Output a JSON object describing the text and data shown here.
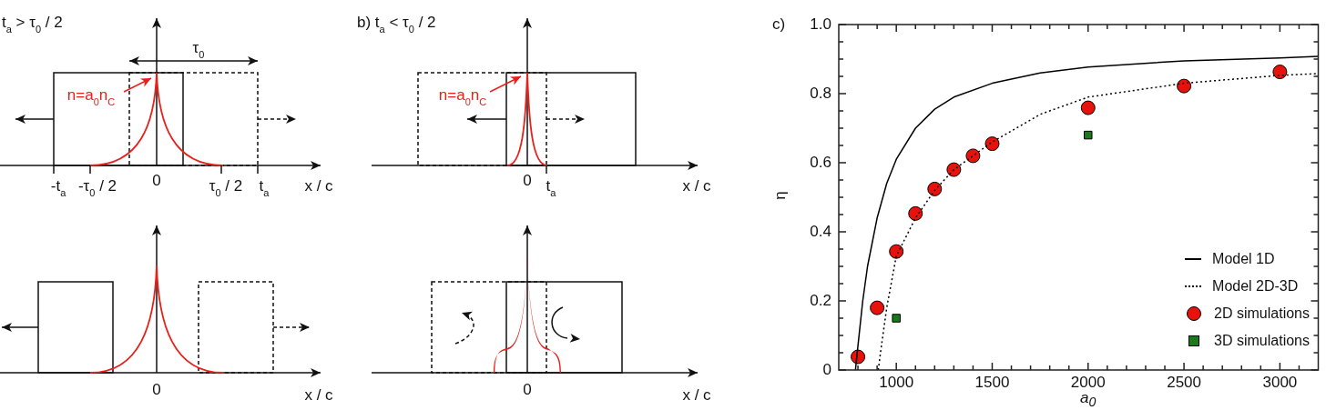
{
  "chart_data": [
    {
      "type": "other",
      "title": "t$_{a}$ > τ$_{0}$ / 2",
      "annotations": [
        "τ$_{0}$",
        "n=a$_{0}$n$_{C}$",
        "-t$_{a}$",
        "-τ$_{0}$ / 2",
        "0",
        "τ$_{0}$ / 2",
        "t$_{a}$",
        "x / c",
        "0",
        "x / c"
      ]
    },
    {
      "type": "other",
      "title": "b) t$_{a}$ < τ$_{0}$ / 2",
      "annotations": [
        "n=a$_{0}$n$_{C}$",
        "0",
        "t$_{a}$",
        "x / c",
        "0",
        "x / c"
      ]
    },
    {
      "type": "scatter",
      "title": "c)",
      "xlabel": "a$_{0}$",
      "ylabel": "η",
      "xlim": [
        700,
        3200
      ],
      "ylim": [
        0,
        1
      ],
      "xticks": [
        {
          "value": 800,
          "label": null
        },
        {
          "value": 900,
          "label": null
        },
        1000,
        {
          "value": 1100,
          "label": null
        },
        {
          "value": 1200,
          "label": null
        },
        {
          "value": 1300,
          "label": null
        },
        {
          "value": 1400,
          "label": null
        },
        1500,
        {
          "value": 1600,
          "label": null
        },
        {
          "value": 1700,
          "label": null
        },
        {
          "value": 1800,
          "label": null
        },
        {
          "value": 1900,
          "label": null
        },
        2000,
        {
          "value": 2100,
          "label": null
        },
        {
          "value": 2200,
          "label": null
        },
        {
          "value": 2300,
          "label": null
        },
        {
          "value": 2400,
          "label": null
        },
        2500,
        {
          "value": 2600,
          "label": null
        },
        {
          "value": 2700,
          "label": null
        },
        {
          "value": 2800,
          "label": null
        },
        {
          "value": 2900,
          "label": null
        },
        3000,
        {
          "value": 3100,
          "label": null
        }
      ],
      "yticks": [
        0,
        {
          "value": 0.05,
          "label": null
        },
        {
          "value": 0.1,
          "label": null
        },
        {
          "value": 0.15,
          "label": null
        },
        0.2,
        {
          "value": 0.25,
          "label": null
        },
        {
          "value": 0.3,
          "label": null
        },
        {
          "value": 0.35,
          "label": null
        },
        0.4,
        {
          "value": 0.45,
          "label": null
        },
        {
          "value": 0.5,
          "label": null
        },
        {
          "value": 0.55,
          "label": null
        },
        0.6,
        {
          "value": 0.65,
          "label": null
        },
        {
          "value": 0.7,
          "label": null
        },
        {
          "value": 0.75,
          "label": null
        },
        0.8,
        {
          "value": 0.85,
          "label": null
        },
        {
          "value": 0.9,
          "label": null
        },
        {
          "value": 0.95,
          "label": null
        },
        {
          "value": 1,
          "label": "1.0"
        }
      ],
      "grid": false,
      "legend": "bottom right",
      "series": [
        {
          "name": "Model 1D",
          "type": "line",
          "color": "#000000",
          "line_style": "solid",
          "marker": "none",
          "x": [
            787,
            800,
            825,
            850,
            900,
            950,
            1000,
            1100,
            1200,
            1300,
            1500,
            1750,
            2000,
            2500,
            3000,
            3200
          ],
          "values": [
            0,
            0.07,
            0.2,
            0.3,
            0.44,
            0.54,
            0.61,
            0.7,
            0.755,
            0.79,
            0.83,
            0.86,
            0.877,
            0.895,
            0.903,
            0.908
          ]
        },
        {
          "name": "Model 2D-3D",
          "type": "line",
          "color": "#000000",
          "line_style": "dotted",
          "marker": "none",
          "x": [
            906,
            920,
            950,
            1000,
            1100,
            1200,
            1300,
            1500,
            1750,
            2000,
            2500,
            3000,
            3200
          ],
          "values": [
            0,
            0.06,
            0.18,
            0.33,
            0.44,
            0.52,
            0.58,
            0.66,
            0.74,
            0.79,
            0.83,
            0.853,
            0.858
          ]
        },
        {
          "name": "2D simulations",
          "type": "scatter",
          "color": "#e8120c",
          "marker": "circle",
          "x": [
            800,
            900,
            1000,
            1100,
            1200,
            1300,
            1400,
            1500,
            2000,
            2500,
            3000
          ],
          "values": [
            0.038,
            0.18,
            0.343,
            0.453,
            0.524,
            0.58,
            0.62,
            0.655,
            0.759,
            0.822,
            0.863
          ]
        },
        {
          "name": "3D simulations",
          "type": "scatter",
          "color": "#1a7a1a",
          "marker": "square",
          "x": [
            1000,
            2000
          ],
          "values": [
            0.15,
            0.68
          ]
        }
      ]
    }
  ]
}
